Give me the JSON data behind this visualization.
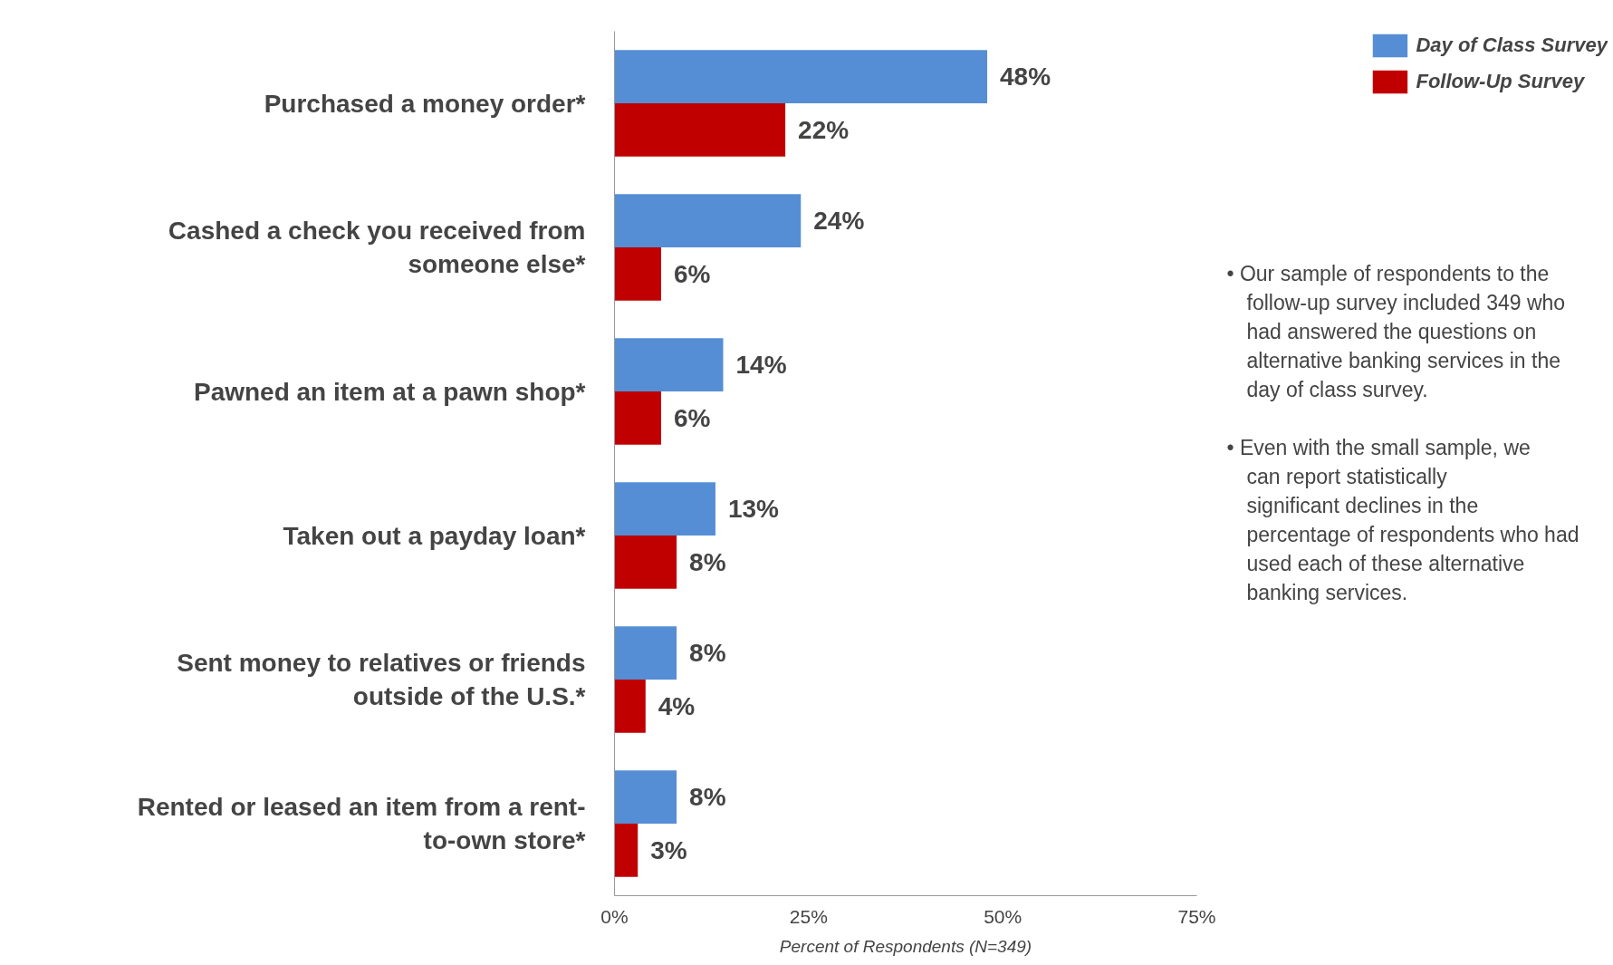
{
  "chart_data": {
    "type": "bar",
    "orientation": "horizontal",
    "categories": [
      "Purchased a money order*",
      "Cashed a check you received from someone else*",
      "Pawned an item at a pawn shop*",
      "Taken out a payday loan*",
      "Sent money to relatives or friends outside of the U.S.*",
      "Rented or leased an item from a rent-to-own store*"
    ],
    "series": [
      {
        "name": "Day of Class Survey",
        "color": "#558ed5",
        "values": [
          48,
          24,
          14,
          13,
          8,
          8
        ],
        "value_labels": [
          "48%",
          "24%",
          "14%",
          "13%",
          "8%",
          "8%"
        ]
      },
      {
        "name": "Follow-Up Survey",
        "color": "#c00000",
        "values": [
          22,
          6,
          6,
          8,
          4,
          3
        ],
        "value_labels": [
          "22%",
          "6%",
          "6%",
          "8%",
          "4%",
          "3%"
        ]
      }
    ],
    "xlim": [
      0,
      75
    ],
    "xticks": [
      {
        "value": 0,
        "label": "0%"
      },
      {
        "value": 25,
        "label": "25%"
      },
      {
        "value": 50,
        "label": "50%"
      },
      {
        "value": 75,
        "label": "75%"
      }
    ],
    "xlabel": "Percent of Respondents (N=349)",
    "grid": false,
    "legend": "top right",
    "annotations": [
      "• Our sample of respondents to the follow-up survey included 349 who had answered the questions on alternative banking services in the day of class survey.",
      "• Even with the small sample, we can report statistically significant declines in the percentage of respondents who had used each of these alternative banking services."
    ]
  }
}
